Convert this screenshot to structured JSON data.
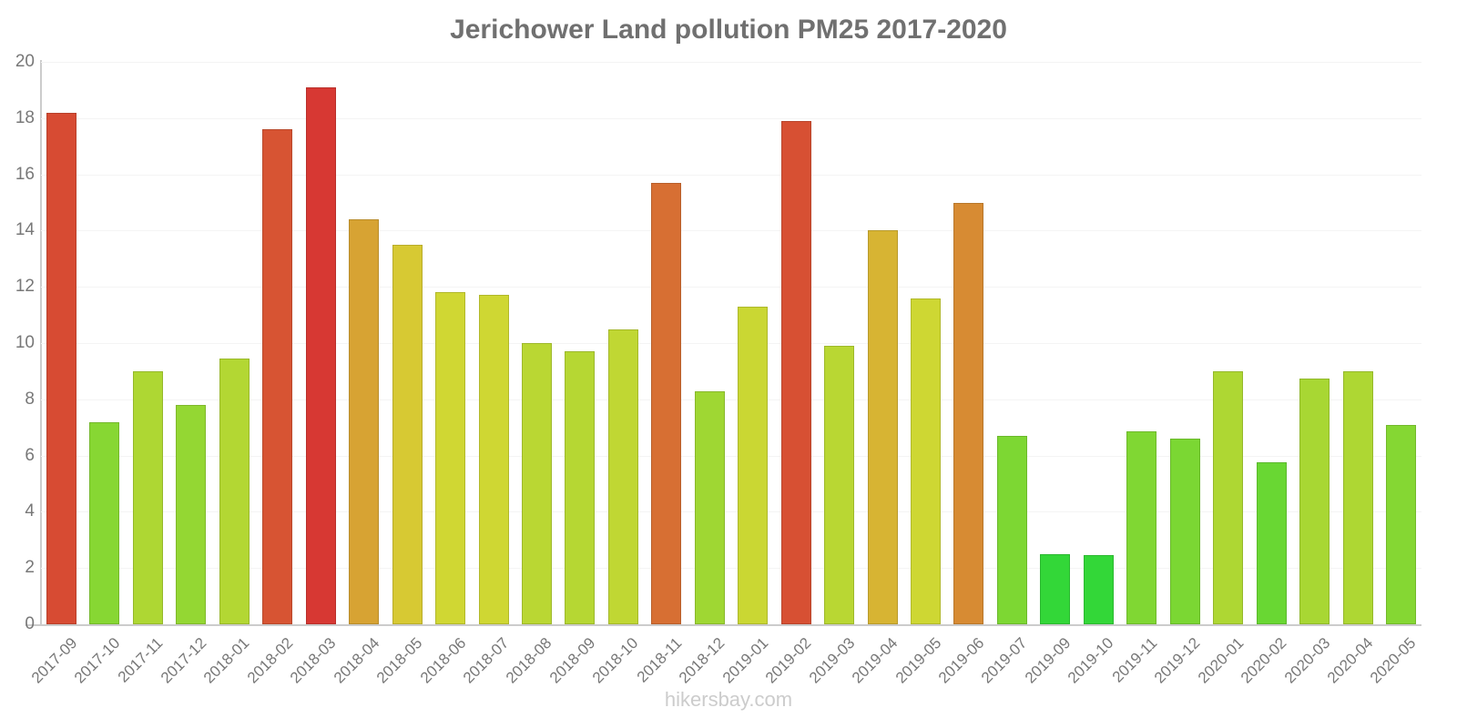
{
  "header": {
    "title": "Jerichower Land pollution PM25 2017-2020"
  },
  "footer": {
    "text": "hikersbay.com"
  },
  "chart_data": {
    "type": "bar",
    "title": "Jerichower Land pollution PM25 2017-2020",
    "xlabel": "",
    "ylabel": "",
    "ylim": [
      0,
      20
    ],
    "yticks": [
      0,
      2,
      4,
      6,
      8,
      10,
      12,
      14,
      16,
      18,
      20
    ],
    "grid": true,
    "legend": "none",
    "categories": [
      "2017-09",
      "2017-10",
      "2017-11",
      "2017-12",
      "2018-01",
      "2018-02",
      "2018-03",
      "2018-04",
      "2018-05",
      "2018-06",
      "2018-07",
      "2018-08",
      "2018-09",
      "2018-10",
      "2018-11",
      "2018-12",
      "2019-01",
      "2019-02",
      "2019-03",
      "2019-04",
      "2019-05",
      "2019-06",
      "2019-07",
      "2019-09",
      "2019-10",
      "2019-11",
      "2019-12",
      "2020-01",
      "2020-02",
      "2020-03",
      "2020-04",
      "2020-05"
    ],
    "values": [
      18.2,
      7.2,
      9.0,
      7.8,
      9.45,
      17.6,
      19.1,
      14.4,
      13.5,
      11.8,
      11.7,
      10.0,
      9.7,
      10.5,
      15.7,
      8.3,
      11.3,
      17.9,
      9.9,
      14.0,
      11.6,
      15.0,
      6.7,
      2.5,
      2.45,
      6.85,
      6.6,
      9.0,
      5.75,
      8.75,
      9.0,
      7.1
    ],
    "bar_colors": [
      "#d74b33",
      "#87d733",
      "#aed733",
      "#94d733",
      "#b3d733",
      "#d75433",
      "#d73833",
      "#d7a333",
      "#d7c933",
      "#d0d733",
      "#cfd733",
      "#bad733",
      "#b6d733",
      "#c0d733",
      "#d76f33",
      "#9fd733",
      "#cad733",
      "#d75033",
      "#b9d733",
      "#d7b433",
      "#ced733",
      "#d78b33",
      "#7dd733",
      "#33d738",
      "#33d738",
      "#80d733",
      "#7bd733",
      "#aed733",
      "#69d733",
      "#a8d733",
      "#aed733",
      "#85d733"
    ],
    "colors_meaning": {
      "low": "#33d738",
      "mid": "#d7c933",
      "high": "#d73833"
    },
    "axis_color": "#cccccc",
    "grid_color": "#f4f4f4",
    "tick_label_color": "#787878",
    "title_color": "#707070",
    "footer_color": "#cccccc"
  }
}
